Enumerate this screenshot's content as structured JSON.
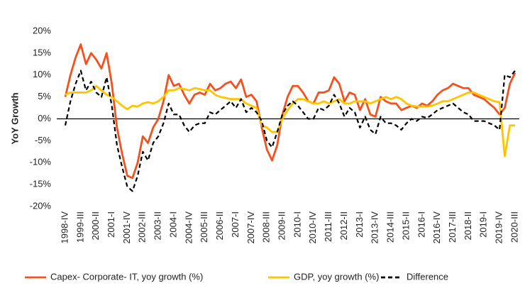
{
  "chart_data": {
    "type": "line",
    "y_label": "YoY Growth",
    "categories": [
      "1998-IV",
      null,
      null,
      "1999-III",
      null,
      null,
      "2000-II",
      null,
      null,
      "2001-I",
      null,
      null,
      "2001-IV",
      null,
      null,
      "2002-III",
      null,
      null,
      "2003-II",
      null,
      null,
      "2004-I",
      null,
      null,
      "2004-IV",
      null,
      null,
      "2005-III",
      null,
      null,
      "2006-II",
      null,
      null,
      "2007-I",
      null,
      null,
      "2007-IV",
      null,
      null,
      "2008-III",
      null,
      null,
      "2009-II",
      null,
      null,
      "2010-I",
      null,
      null,
      "2010-IV",
      null,
      null,
      "2011-III",
      null,
      null,
      "2012-II",
      null,
      null,
      "2013-I",
      null,
      null,
      "2013-IV",
      null,
      null,
      "2014-III",
      null,
      null,
      "2015-II",
      null,
      null,
      "2016-I",
      null,
      null,
      "2016-IV",
      null,
      null,
      "2017-III",
      null,
      null,
      "2018-II",
      null,
      null,
      "2019-I",
      null,
      null,
      "2019-IV",
      null,
      null,
      "2020-III"
    ],
    "series": [
      {
        "name": "Capex- Corporate- IT, yoy growth (%)",
        "color": "#f4511e",
        "dash": false,
        "values": [
          5,
          10,
          14,
          17,
          12.5,
          15,
          13.5,
          11.5,
          15,
          8,
          -2,
          -8,
          -13,
          -13.5,
          -10,
          -4,
          -5.5,
          -2,
          0,
          4,
          10,
          7.5,
          8,
          5.5,
          3.5,
          5.5,
          6,
          5.5,
          8,
          6.5,
          7,
          8,
          8.5,
          7,
          9,
          5,
          5.5,
          4,
          -2,
          -7,
          -9.5,
          -6,
          1,
          5,
          7.5,
          7.5,
          6,
          4,
          3.5,
          6,
          6,
          6.5,
          9.5,
          8,
          4,
          6,
          5.5,
          2,
          4.5,
          1,
          0.5,
          5,
          4,
          3.5,
          3.5,
          2,
          2.5,
          3,
          2.5,
          3.5,
          3,
          4,
          5.5,
          6.5,
          7,
          8,
          7.5,
          7,
          7,
          5.5,
          5,
          4.5,
          3.5,
          2.5,
          1,
          2.5,
          8,
          10.5
        ]
      },
      {
        "name": "GDP, yoy growth (%)",
        "color": "#ffc400",
        "dash": false,
        "values": [
          5.5,
          6,
          6,
          6,
          6,
          6.5,
          7.5,
          6.5,
          5.5,
          5,
          4,
          3,
          2.2,
          3,
          2.8,
          3.5,
          3.8,
          3.5,
          4,
          5,
          6.5,
          6.5,
          7,
          6.8,
          6.5,
          7,
          6.8,
          6.5,
          6.5,
          5.5,
          5,
          4.8,
          4.5,
          4.5,
          4.5,
          3.5,
          3,
          2.5,
          -1.5,
          -2,
          -3,
          -3,
          0,
          2,
          3.5,
          4.5,
          4.5,
          4,
          3.5,
          3.5,
          4,
          3.5,
          4,
          4.5,
          3.5,
          3.5,
          4,
          4,
          4,
          3.5,
          4,
          4.5,
          5,
          4.5,
          5,
          4.5,
          3.5,
          3,
          2.8,
          2.8,
          2.8,
          3,
          3.5,
          4,
          4,
          4.5,
          5,
          5.5,
          6,
          6,
          5.5,
          5,
          4.5,
          4,
          3.8,
          -8.5,
          -1.5,
          -1.5
        ]
      },
      {
        "name": "Difference",
        "color": "#000000",
        "dash": true,
        "values": [
          -1.5,
          4,
          8,
          11,
          6.5,
          8.5,
          6,
          5,
          9.5,
          3,
          -6,
          -11,
          -15.5,
          -16.5,
          -13,
          -7.5,
          -9.5,
          -5.5,
          -4,
          -1,
          3.5,
          1,
          1,
          -1.5,
          -3,
          -1.5,
          -1,
          -1,
          1.5,
          1,
          2,
          3,
          4,
          2.5,
          4.5,
          1.5,
          2.5,
          1.5,
          -0.5,
          -5,
          -6.5,
          -3,
          1,
          3,
          4,
          3,
          1.5,
          0,
          0,
          2.5,
          2,
          3,
          5.5,
          3.5,
          0.5,
          2.5,
          1.5,
          -2,
          0.5,
          -2.5,
          -3.5,
          0.5,
          -1,
          -1,
          -1.5,
          -2.5,
          -1,
          0,
          -0.5,
          0.5,
          0.2,
          1,
          2,
          2.5,
          3,
          3.5,
          2.5,
          1.5,
          1,
          -0.5,
          -0.5,
          -0.5,
          -1,
          -1.5,
          -2.5,
          10,
          9.5,
          11
        ]
      }
    ],
    "ylim": [
      -20,
      20
    ],
    "yticks": [
      {
        "value": -20,
        "label": "-20%"
      },
      {
        "value": -15,
        "label": "-15%"
      },
      {
        "value": -10,
        "label": "-10%"
      },
      {
        "value": -5,
        "label": "-5%"
      },
      {
        "value": 0,
        "label": "0%"
      },
      {
        "value": 5,
        "label": "5%"
      },
      {
        "value": 10,
        "label": "10%"
      },
      {
        "value": 15,
        "label": "15%"
      },
      {
        "value": 20,
        "label": "20%"
      }
    ],
    "legend": "bottom"
  }
}
